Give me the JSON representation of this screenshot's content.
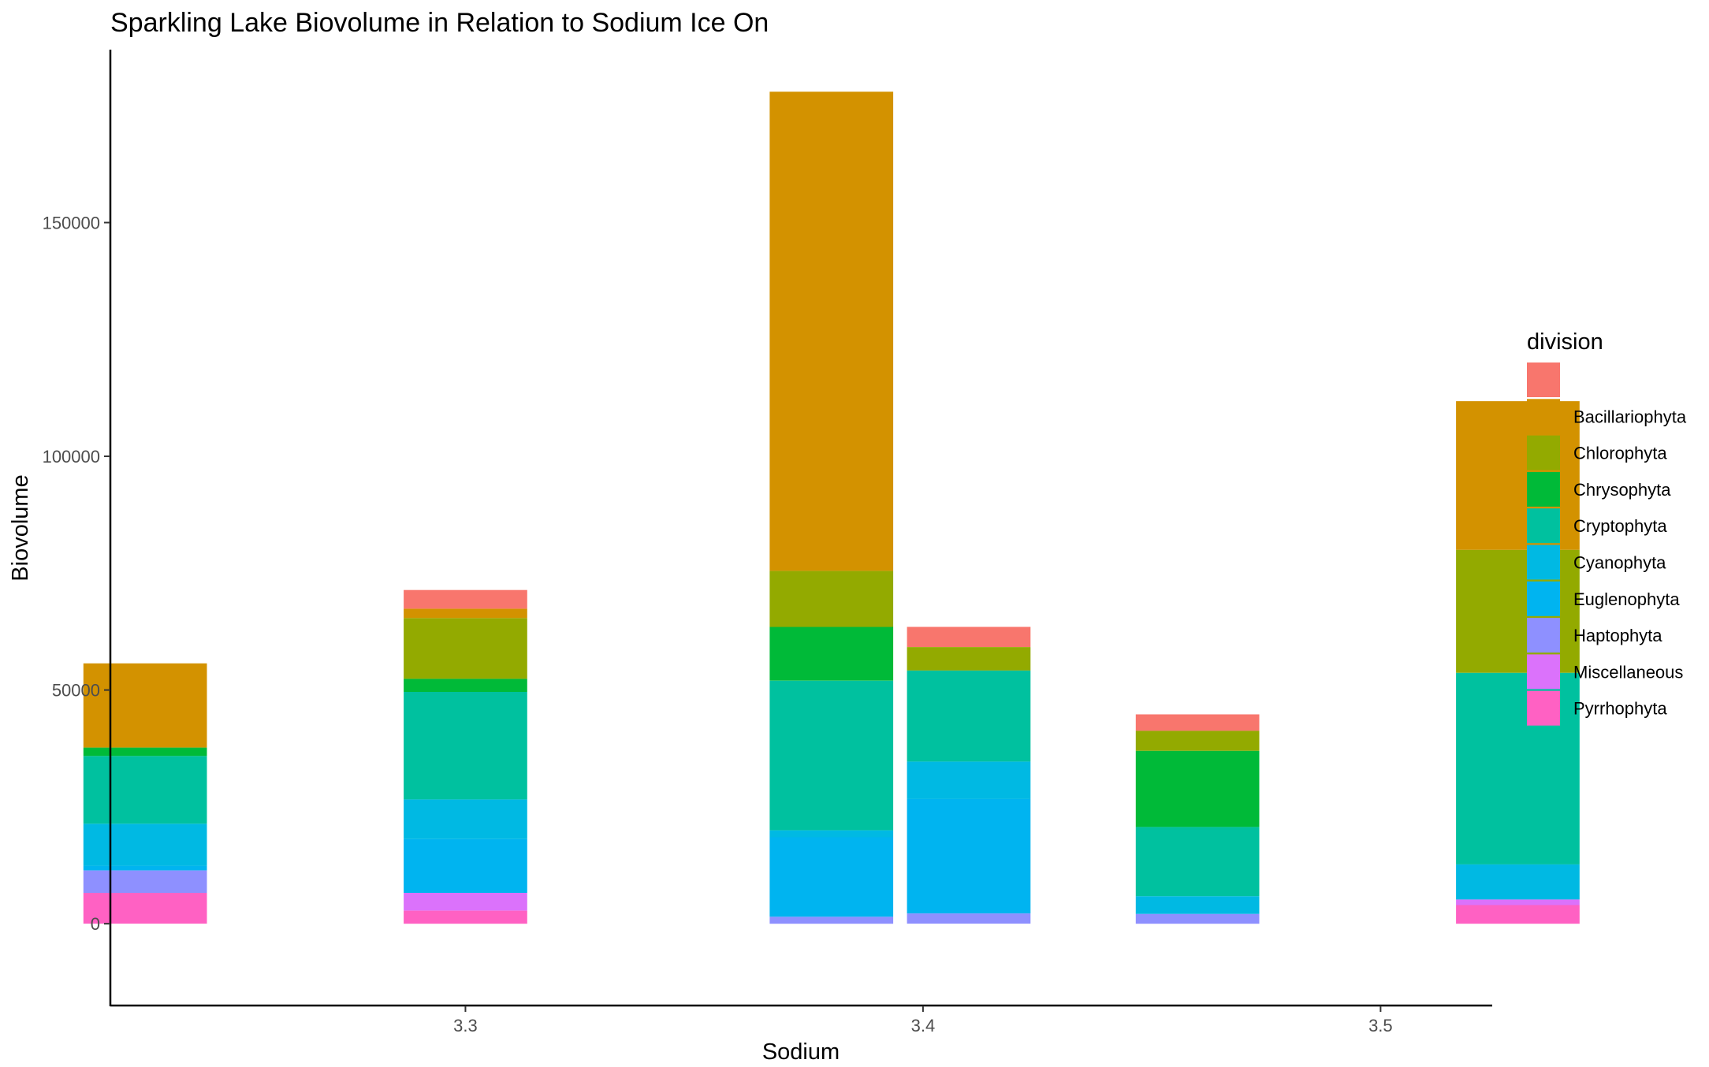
{
  "chart_data": {
    "type": "bar",
    "stacked": true,
    "title": "Sparkling Lake Biovolume in Relation to Sodium Ice On",
    "xlabel": "Sodium",
    "ylabel": "Biovolume",
    "xlim": [
      3.2224,
      3.5244
    ],
    "ylim": [
      -17500,
      187000
    ],
    "x_ticks": [
      3.3,
      3.4,
      3.5
    ],
    "x_tick_labels": [
      "3.3",
      "3.4",
      "3.5"
    ],
    "y_ticks": [
      0,
      50000,
      100000,
      150000
    ],
    "y_tick_labels": [
      "0",
      "50000",
      "100000",
      "150000"
    ],
    "bar_width": 0.027,
    "grid": false,
    "legend": {
      "title": "division",
      "position": "right"
    },
    "divisions": [
      {
        "name": "",
        "color": "#F8766D"
      },
      {
        "name": "Bacillariophyta",
        "color": "#D39200"
      },
      {
        "name": "Chlorophyta",
        "color": "#93AA00"
      },
      {
        "name": "Chrysophyta",
        "color": "#00BA38"
      },
      {
        "name": "Cryptophyta",
        "color": "#00C19F"
      },
      {
        "name": "Cyanophyta",
        "color": "#00B9E3"
      },
      {
        "name": "Euglenophyta",
        "color": "#00B4F0"
      },
      {
        "name": "Haptophyta",
        "color": "#8E90FF"
      },
      {
        "name": "Miscellaneous",
        "color": "#DB72FB"
      },
      {
        "name": "Pyrrhophyta",
        "color": "#FF61C3"
      }
    ],
    "bars": [
      {
        "x": 3.23,
        "values": [
          0,
          18000,
          0,
          1800,
          14500,
          9000,
          1000,
          4800,
          0,
          6600
        ]
      },
      {
        "x": 3.3,
        "values": [
          4000,
          2000,
          13000,
          2800,
          23000,
          8500,
          11500,
          0,
          3800,
          2800
        ]
      },
      {
        "x": 3.38,
        "values": [
          0,
          102500,
          12000,
          11500,
          32000,
          1500,
          17000,
          1500,
          0,
          0
        ]
      },
      {
        "x": 3.41,
        "values": [
          4300,
          0,
          5000,
          0,
          19500,
          8000,
          24500,
          2200,
          0,
          0
        ]
      },
      {
        "x": 3.46,
        "values": [
          3500,
          0,
          4300,
          16300,
          14800,
          3800,
          0,
          2100,
          0,
          0
        ]
      },
      {
        "x": 3.53,
        "values": [
          0,
          31800,
          26300,
          0,
          41000,
          7500,
          0,
          0,
          1200,
          4000
        ]
      }
    ]
  }
}
